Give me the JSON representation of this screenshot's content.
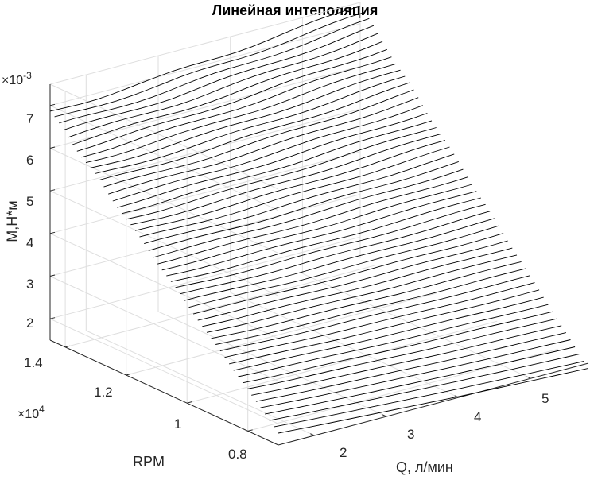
{
  "chart_data": {
    "type": "mesh",
    "title": "Линейная интеполяция",
    "xlabel": "Q, л/мин",
    "ylabel": "RPM",
    "zlabel": "M,Н*м",
    "x_exponent_base": "×10",
    "x_exponent_power": "-3",
    "y_exponent_base": "×10",
    "y_exponent_power": "4",
    "grid": true,
    "x_range": [
      1.5,
      5.8
    ],
    "y_range": [
      0.7,
      1.45
    ],
    "z_range": [
      1.5,
      7.5
    ],
    "x_ticks": [
      "2",
      "3",
      "4",
      "5"
    ],
    "y_ticks": [
      "0.8",
      "1",
      "1.2",
      "1.4"
    ],
    "z_ticks": [
      "2",
      "3",
      "4",
      "5",
      "6",
      "7"
    ],
    "series": [
      {
        "rpm_range": [
          0.7,
          1.45
        ],
        "line_count": 52,
        "q_knots": [
          1.5,
          2.0,
          3.0,
          4.0,
          5.0,
          5.8
        ],
        "torque_at_min_rpm": [
          1.78,
          1.72,
          1.62,
          1.52,
          1.44,
          1.38
        ],
        "torque_at_max_rpm": [
          6.85,
          6.88,
          6.98,
          7.12,
          7.28,
          7.42
        ]
      }
    ]
  }
}
